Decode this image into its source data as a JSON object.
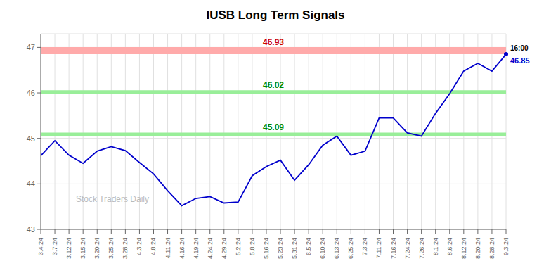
{
  "chart_data": {
    "type": "line",
    "title": "IUSB Long Term Signals",
    "color": "#0000cc",
    "grid": true,
    "categories": [
      "3.4.24",
      "3.7.24",
      "3.12.24",
      "3.15.24",
      "3.20.24",
      "3.25.24",
      "3.28.24",
      "4.3.24",
      "4.8.24",
      "4.11.24",
      "4.16.24",
      "4.19.24",
      "4.24.24",
      "4.29.24",
      "5.2.24",
      "5.8.24",
      "5.16.24",
      "5.23.24",
      "5.31.24",
      "6.5.24",
      "6.10.24",
      "6.13.24",
      "6.25.24",
      "7.3.24",
      "7.11.24",
      "7.16.24",
      "7.24.24",
      "7.26.24",
      "8.1.24",
      "8.6.24",
      "8.12.24",
      "8.20.24",
      "8.28.24",
      "9.3.24"
    ],
    "values": [
      44.62,
      44.95,
      44.63,
      44.45,
      44.72,
      44.82,
      44.73,
      44.47,
      44.22,
      43.85,
      43.52,
      43.68,
      43.72,
      43.58,
      43.6,
      44.18,
      44.38,
      44.52,
      44.08,
      44.42,
      44.85,
      45.05,
      44.63,
      44.72,
      45.45,
      45.45,
      45.12,
      45.05,
      45.55,
      45.98,
      46.48,
      46.65,
      46.48,
      46.85
    ],
    "ylim": [
      43,
      47.3
    ],
    "yticks": [
      43,
      44,
      45,
      46,
      47
    ],
    "hlines": [
      {
        "y": 46.93,
        "color": "#ffaaaa",
        "label": "46.93",
        "label_color": "#cc0000"
      },
      {
        "y": 46.02,
        "color": "#99ee99",
        "label": "46.02",
        "label_color": "#008800"
      },
      {
        "y": 45.09,
        "color": "#99ee99",
        "label": "45.09",
        "label_color": "#008800"
      }
    ],
    "annotations": [
      {
        "text": "16:00",
        "color": "#000000"
      },
      {
        "text": "46.85",
        "color": "#0000cc"
      }
    ],
    "watermark": "Stock Traders Daily"
  }
}
